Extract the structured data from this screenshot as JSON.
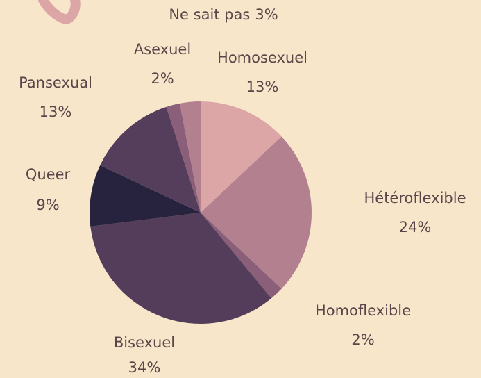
{
  "chart_data": {
    "type": "pie",
    "categories": [
      "Homosexuel",
      "Hétéroflexible",
      "Homoflexible",
      "Bisexuel",
      "Queer",
      "Pansexual",
      "Asexuel",
      "Ne sait pas"
    ],
    "values": [
      13,
      24,
      2,
      34,
      9,
      13,
      2,
      3
    ],
    "value_labels": [
      "13%",
      "24%",
      "2%",
      "34%",
      "9%",
      "13%",
      "2%",
      "3%"
    ],
    "colors": [
      "#dca6a6",
      "#b2808f",
      "#8b5f7a",
      "#533d5a",
      "#27233f",
      "#543e5b",
      "#8b5f7a",
      "#b2808f"
    ]
  }
}
